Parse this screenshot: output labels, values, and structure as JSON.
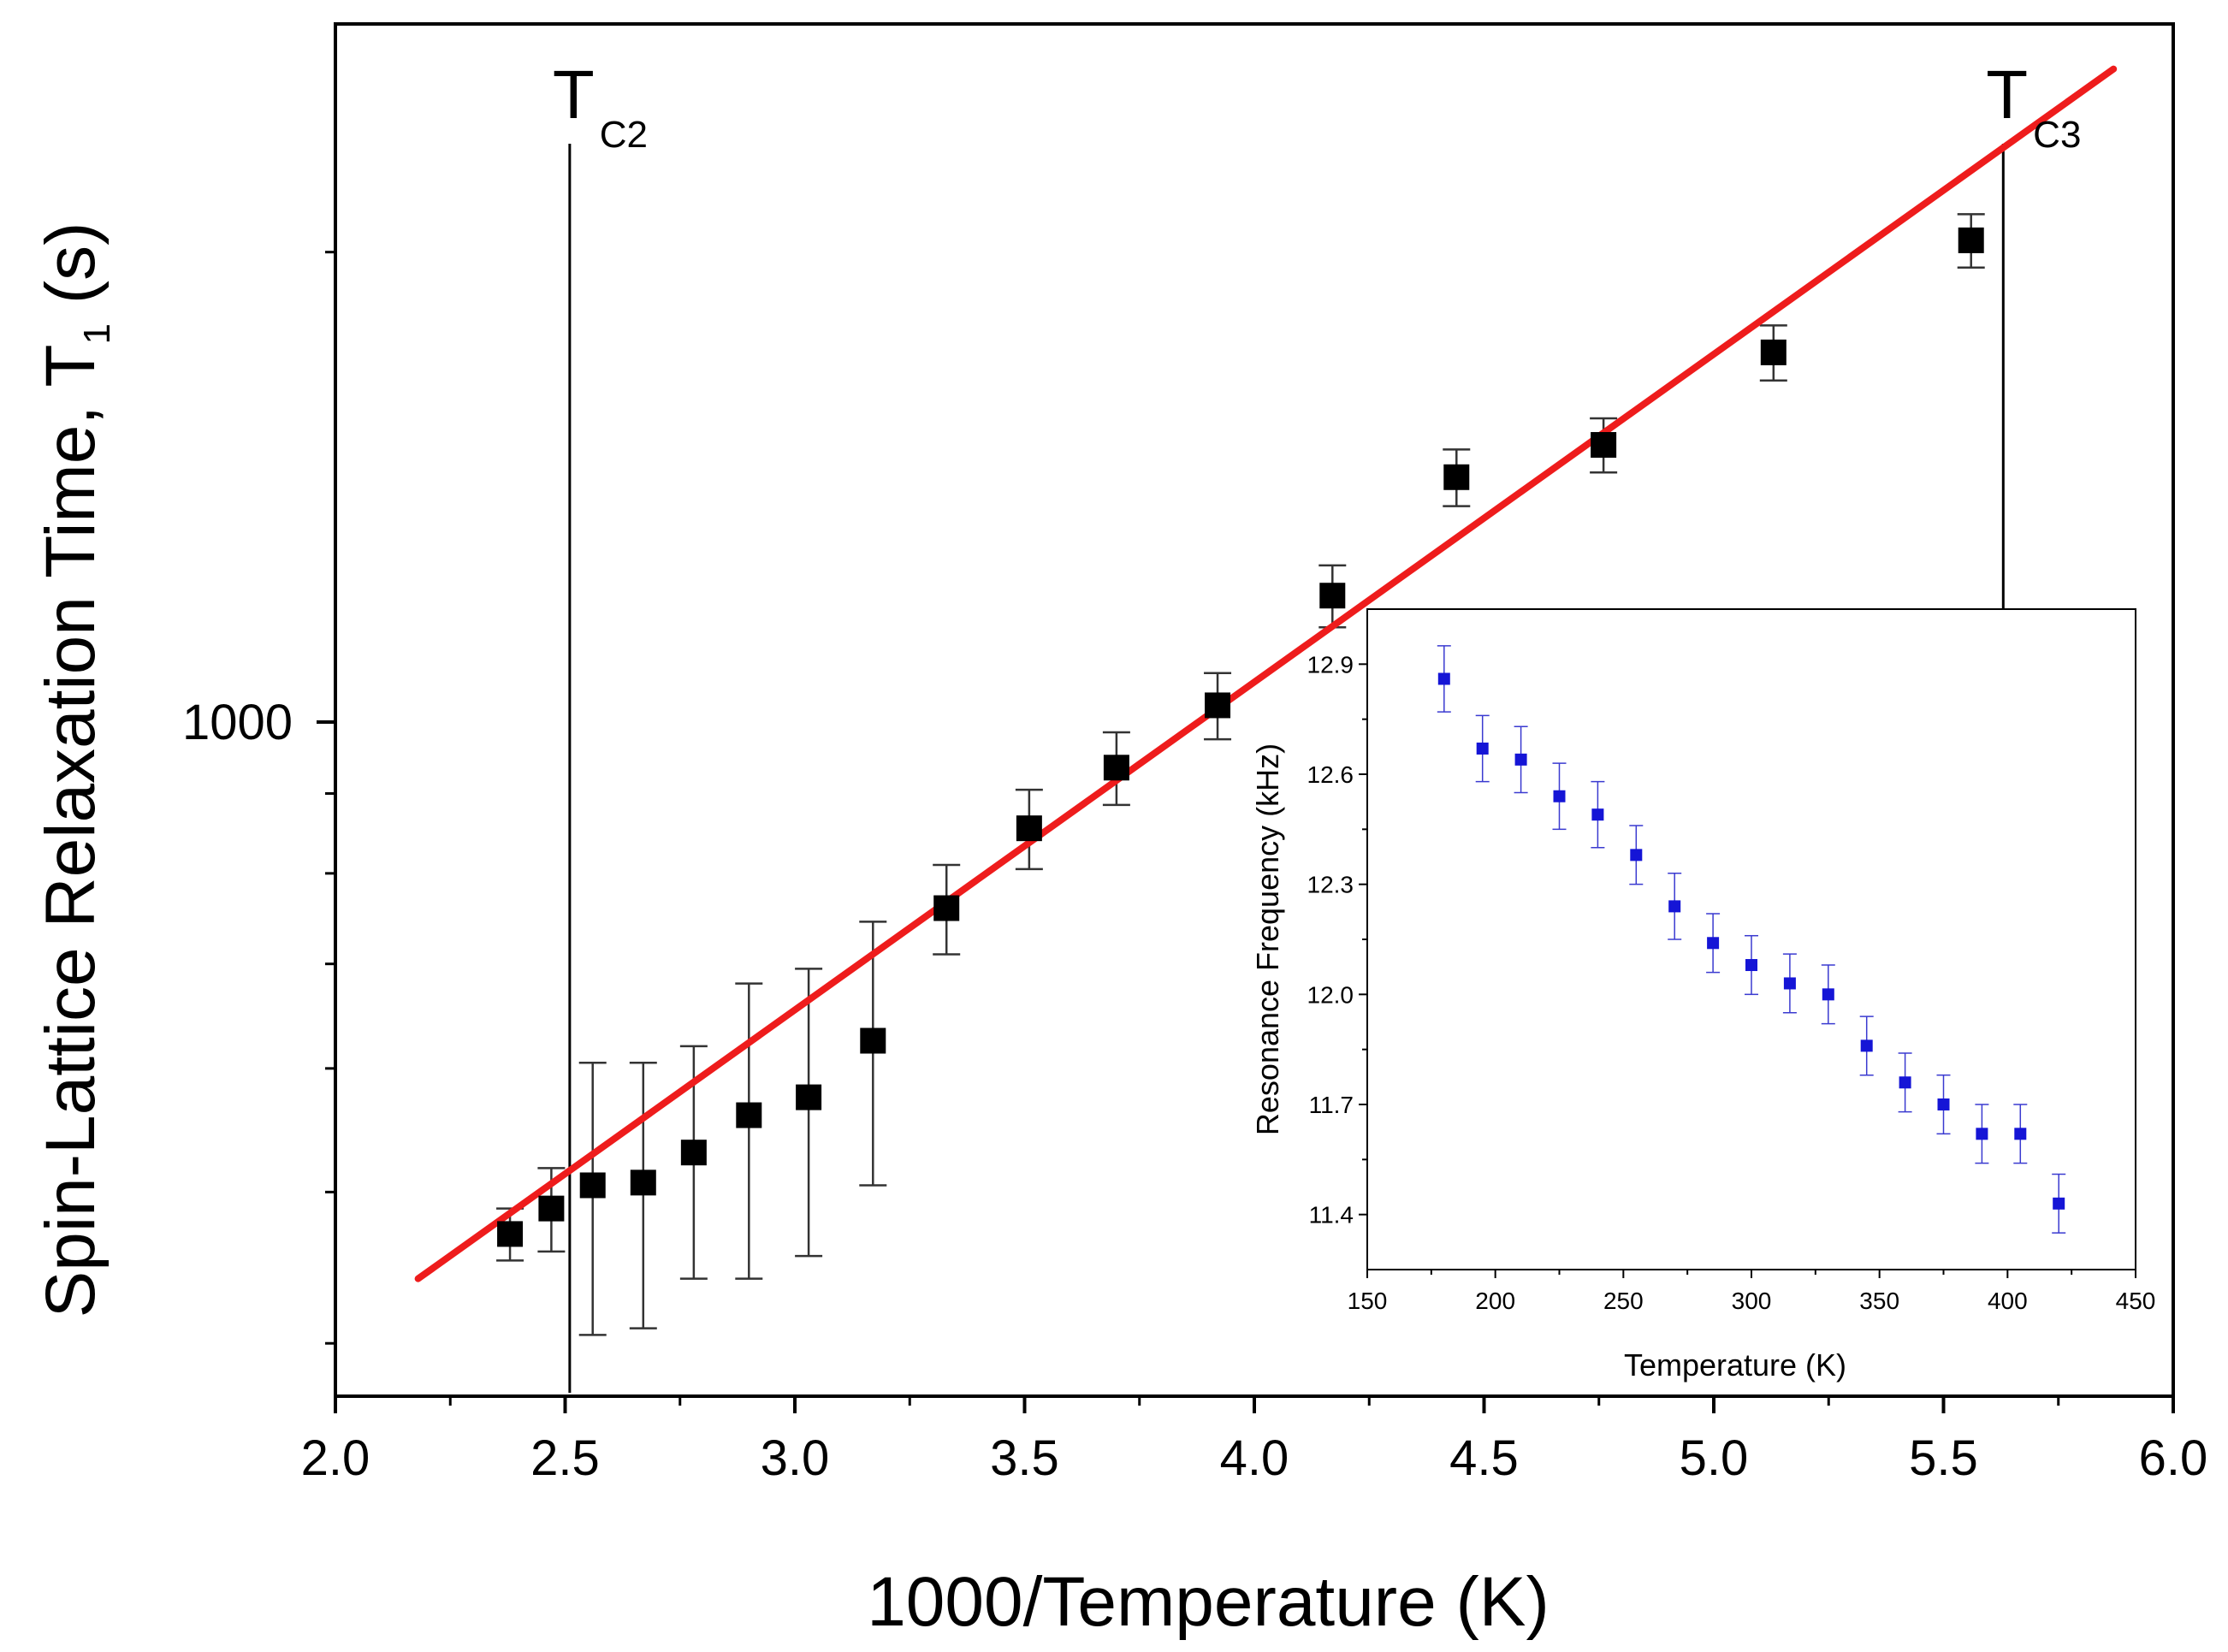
{
  "colors": {
    "axis": "#000000",
    "main_marker": "#000000",
    "fit_line": "#ee1c1c",
    "inset_marker": "#1515d6",
    "inset_error": "#3a3ad0",
    "errorbar": "#333333"
  },
  "chart_data": [
    {
      "id": "main",
      "type": "scatter",
      "xscale": "linear",
      "yscale": "log",
      "xlabel": "1000/Temperature (K)",
      "ylabel": "Spin-Lattice Relaxation Time, T",
      "ylabel_subscript": "1",
      "ylabel_suffix": " (s)",
      "xlim": [
        2.0,
        6.0
      ],
      "ylim": [
        370,
        2800
      ],
      "xticks": [
        2.0,
        2.5,
        3.0,
        3.5,
        4.0,
        4.5,
        5.0,
        5.5,
        6.0
      ],
      "xtick_labels": [
        "2.0",
        "2.5",
        "3.0",
        "3.5",
        "4.0",
        "4.5",
        "5.0",
        "5.5",
        "6.0"
      ],
      "yticks_labeled": [
        1000
      ],
      "ytick_labels": [
        "1000"
      ],
      "yticks_minor": [
        400,
        500,
        600,
        700,
        800,
        900,
        2000
      ],
      "series": [
        {
          "name": "T1 data",
          "marker": "square",
          "x": [
            2.38,
            2.47,
            2.56,
            2.67,
            2.78,
            2.9,
            3.03,
            3.17,
            3.33,
            3.51,
            3.7,
            3.92,
            4.17,
            4.44,
            4.76,
            5.13,
            5.56
          ],
          "y": [
            470,
            488,
            505,
            507,
            530,
            560,
            575,
            625,
            760,
            855,
            935,
            1025,
            1205,
            1435,
            1505,
            1725,
            2035
          ],
          "yerr": [
            18,
            30,
            100,
            98,
            90,
            120,
            120,
            120,
            50,
            50,
            50,
            50,
            55,
            60,
            60,
            70,
            80
          ]
        },
        {
          "name": "Linear fit",
          "type": "line",
          "x": [
            2.18,
            5.87
          ],
          "y": [
            440,
            2620
          ]
        }
      ],
      "annotations": [
        {
          "label": "T",
          "subscript": "C2",
          "x": 2.51
        },
        {
          "label": "T",
          "subscript": "C3",
          "x": 5.63
        }
      ]
    },
    {
      "id": "inset",
      "type": "scatter",
      "xlabel": "Temperature (K)",
      "ylabel": "Resonance Frequency (kHz)",
      "xlim": [
        150,
        450
      ],
      "ylim": [
        11.25,
        13.05
      ],
      "xticks": [
        150,
        200,
        250,
        300,
        350,
        400,
        450
      ],
      "xtick_labels": [
        "150",
        "200",
        "250",
        "300",
        "350",
        "400",
        "450"
      ],
      "yticks": [
        11.4,
        11.7,
        12.0,
        12.3,
        12.6,
        12.9
      ],
      "ytick_labels": [
        "11.4",
        "11.7",
        "12.0",
        "12.3",
        "12.6",
        "12.9"
      ],
      "series": [
        {
          "name": "Resonance frequency",
          "marker": "square",
          "x": [
            180,
            195,
            210,
            225,
            240,
            255,
            270,
            285,
            300,
            315,
            330,
            345,
            360,
            375,
            390,
            405,
            420
          ],
          "y": [
            12.86,
            12.67,
            12.64,
            12.54,
            12.49,
            12.38,
            12.24,
            12.14,
            12.08,
            12.03,
            12.0,
            11.86,
            11.76,
            11.7,
            11.62,
            11.62,
            11.43
          ],
          "yerr": [
            0.09,
            0.09,
            0.09,
            0.09,
            0.09,
            0.08,
            0.09,
            0.08,
            0.08,
            0.08,
            0.08,
            0.08,
            0.08,
            0.08,
            0.08,
            0.08,
            0.08
          ]
        }
      ]
    }
  ]
}
